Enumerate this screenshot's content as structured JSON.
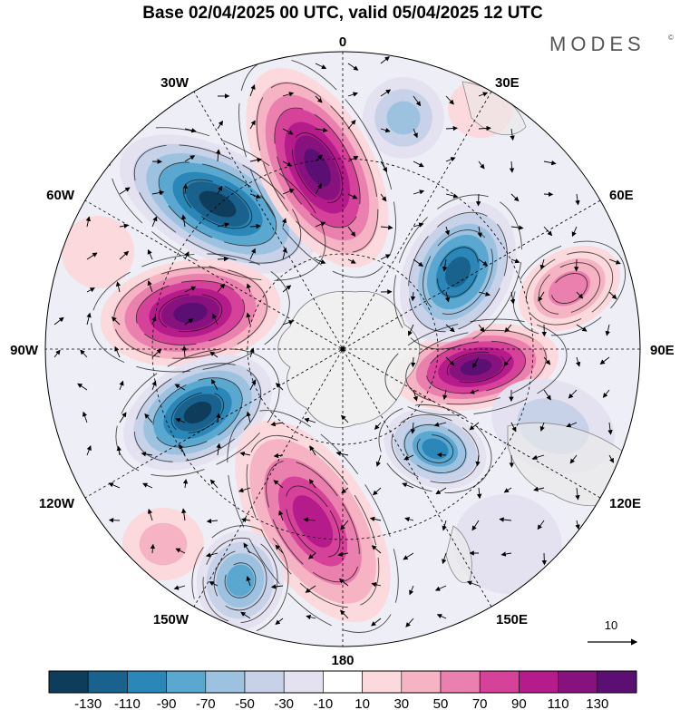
{
  "title": "Base 02/04/2025 00 UTC, valid 05/04/2025 12 UTC",
  "brand": {
    "name": "MODES",
    "mark": "©"
  },
  "longitude_labels": [
    {
      "key": "0",
      "text": "0"
    },
    {
      "key": "30E",
      "text": "30E"
    },
    {
      "key": "60E",
      "text": "60E"
    },
    {
      "key": "90E",
      "text": "90E"
    },
    {
      "key": "120E",
      "text": "120E"
    },
    {
      "key": "150E",
      "text": "150E"
    },
    {
      "key": "180",
      "text": "180"
    },
    {
      "key": "150W",
      "text": "150W"
    },
    {
      "key": "120W",
      "text": "120W"
    },
    {
      "key": "90W",
      "text": "90W"
    },
    {
      "key": "60W",
      "text": "60W"
    },
    {
      "key": "30W",
      "text": "30W"
    }
  ],
  "reference_vector": {
    "label": "10"
  },
  "colorbar": {
    "colors": [
      "#0e3d5c",
      "#19628d",
      "#2b87b8",
      "#5aa7d0",
      "#9cc2e0",
      "#c7d2e8",
      "#e4e2f0",
      "#ffffff",
      "#fbd9dc",
      "#f5b3c4",
      "#ea80ae",
      "#d64199",
      "#b51b8b",
      "#87127e",
      "#5b0f73"
    ],
    "ticks": [
      "-130",
      "-110",
      "-90",
      "-70",
      "-50",
      "-30",
      "-10",
      "10",
      "30",
      "50",
      "70",
      "90",
      "110",
      "130"
    ]
  }
}
